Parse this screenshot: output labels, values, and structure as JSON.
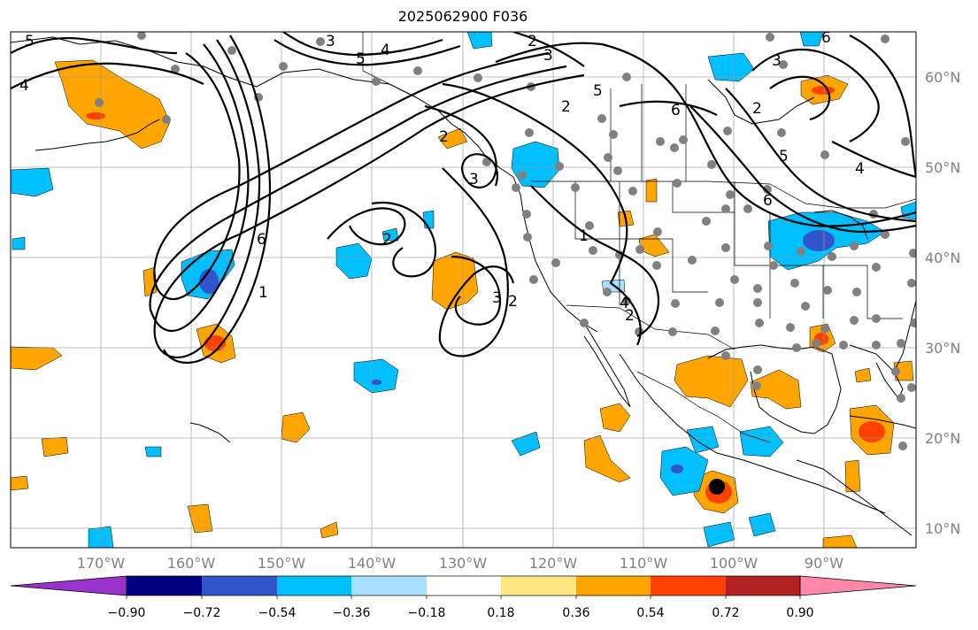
{
  "title": "2025062900 F036",
  "lat_labels": [
    "60°N",
    "50°N",
    "40°N",
    "30°N",
    "20°N",
    "10°N"
  ],
  "lon_labels": [
    "170°W",
    "160°W",
    "150°W",
    "140°W",
    "130°W",
    "120°W",
    "110°W",
    "100°W",
    "90°W"
  ],
  "colorbar": {
    "ticks": [
      "−0.90",
      "−0.72",
      "−0.54",
      "−0.36",
      "−0.18",
      "0.18",
      "0.36",
      "0.54",
      "0.72",
      "0.90"
    ],
    "colors": [
      "#9933cc",
      "#000080",
      "#3355cc",
      "#00bfff",
      "#aadfff",
      "#ffffff",
      "#ffe680",
      "#ffa500",
      "#ff4000",
      "#b22222",
      "#ff88aa"
    ]
  },
  "contour_labels": [
    "5",
    "4",
    "3",
    "2",
    "4",
    "3",
    "5",
    "2",
    "6",
    "2",
    "6",
    "5",
    "6",
    "4",
    "3",
    "6",
    "2",
    "1",
    "3",
    "2",
    "3",
    "2",
    "1",
    "2",
    "5",
    "4"
  ],
  "colors": {
    "neg_light": "#aadfff",
    "neg_mid": "#00bfff",
    "neg_dark": "#3355cc",
    "pos_light": "#ffe680",
    "pos_mid": "#ffa500",
    "pos_dark": "#ff4000",
    "station": "#808080",
    "marker": "#000000"
  }
}
